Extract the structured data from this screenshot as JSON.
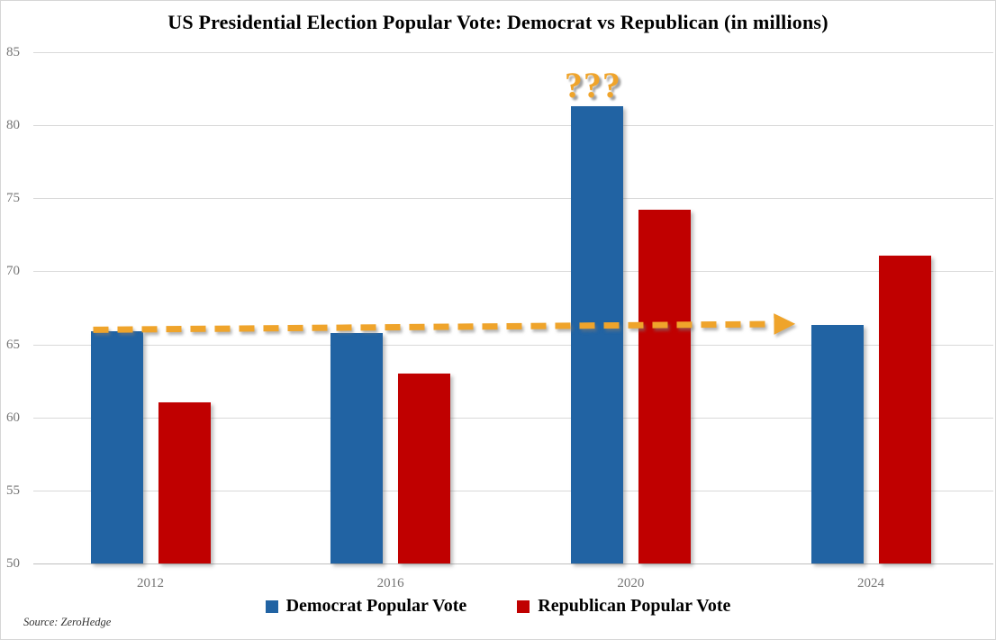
{
  "title": "US Presidential Election Popular Vote: Democrat vs Republican (in millions)",
  "source": "Source: ZeroHedge",
  "colors": {
    "democrat_blue": "#2163A3",
    "republican_red": "#C00000",
    "annotation_gold": "#EFA42B",
    "gridline": "#D9D9D9",
    "axis_text": "#757575"
  },
  "legend": {
    "items": [
      {
        "label": "Democrat Popular Vote",
        "color": "#2163A3"
      },
      {
        "label": "Republican Popular Vote",
        "color": "#C00000"
      }
    ]
  },
  "chart_data": {
    "type": "bar",
    "title": "US Presidential Election Popular Vote: Democrat vs Republican (in millions)",
    "categories": [
      "2012",
      "2016",
      "2020",
      "2024"
    ],
    "series": [
      {
        "name": "Democrat Popular Vote",
        "color": "#2163A3",
        "values": [
          65.9,
          65.8,
          81.3,
          66.3
        ]
      },
      {
        "name": "Republican Popular Vote",
        "color": "#C00000",
        "values": [
          61.0,
          63.0,
          74.2,
          71.1
        ]
      }
    ],
    "xlabel": "",
    "ylabel": "",
    "ylim": [
      50,
      85
    ],
    "yticks": [
      50,
      55,
      60,
      65,
      70,
      75,
      80,
      85
    ],
    "grid": true,
    "legend_position": "bottom",
    "annotations": {
      "dashed_arrow": {
        "style": "dashed",
        "color": "#EFA42B",
        "from_category": "2012",
        "to_category": "2024",
        "value_start": 66.0,
        "value_end": 66.4,
        "meaning": "roughly flat Democrat vote level across 2012-2024 excluding 2020"
      },
      "question_marks": {
        "text": "???",
        "color": "#EFA42B",
        "above_category": "2020",
        "series": "Democrat Popular Vote"
      }
    }
  }
}
